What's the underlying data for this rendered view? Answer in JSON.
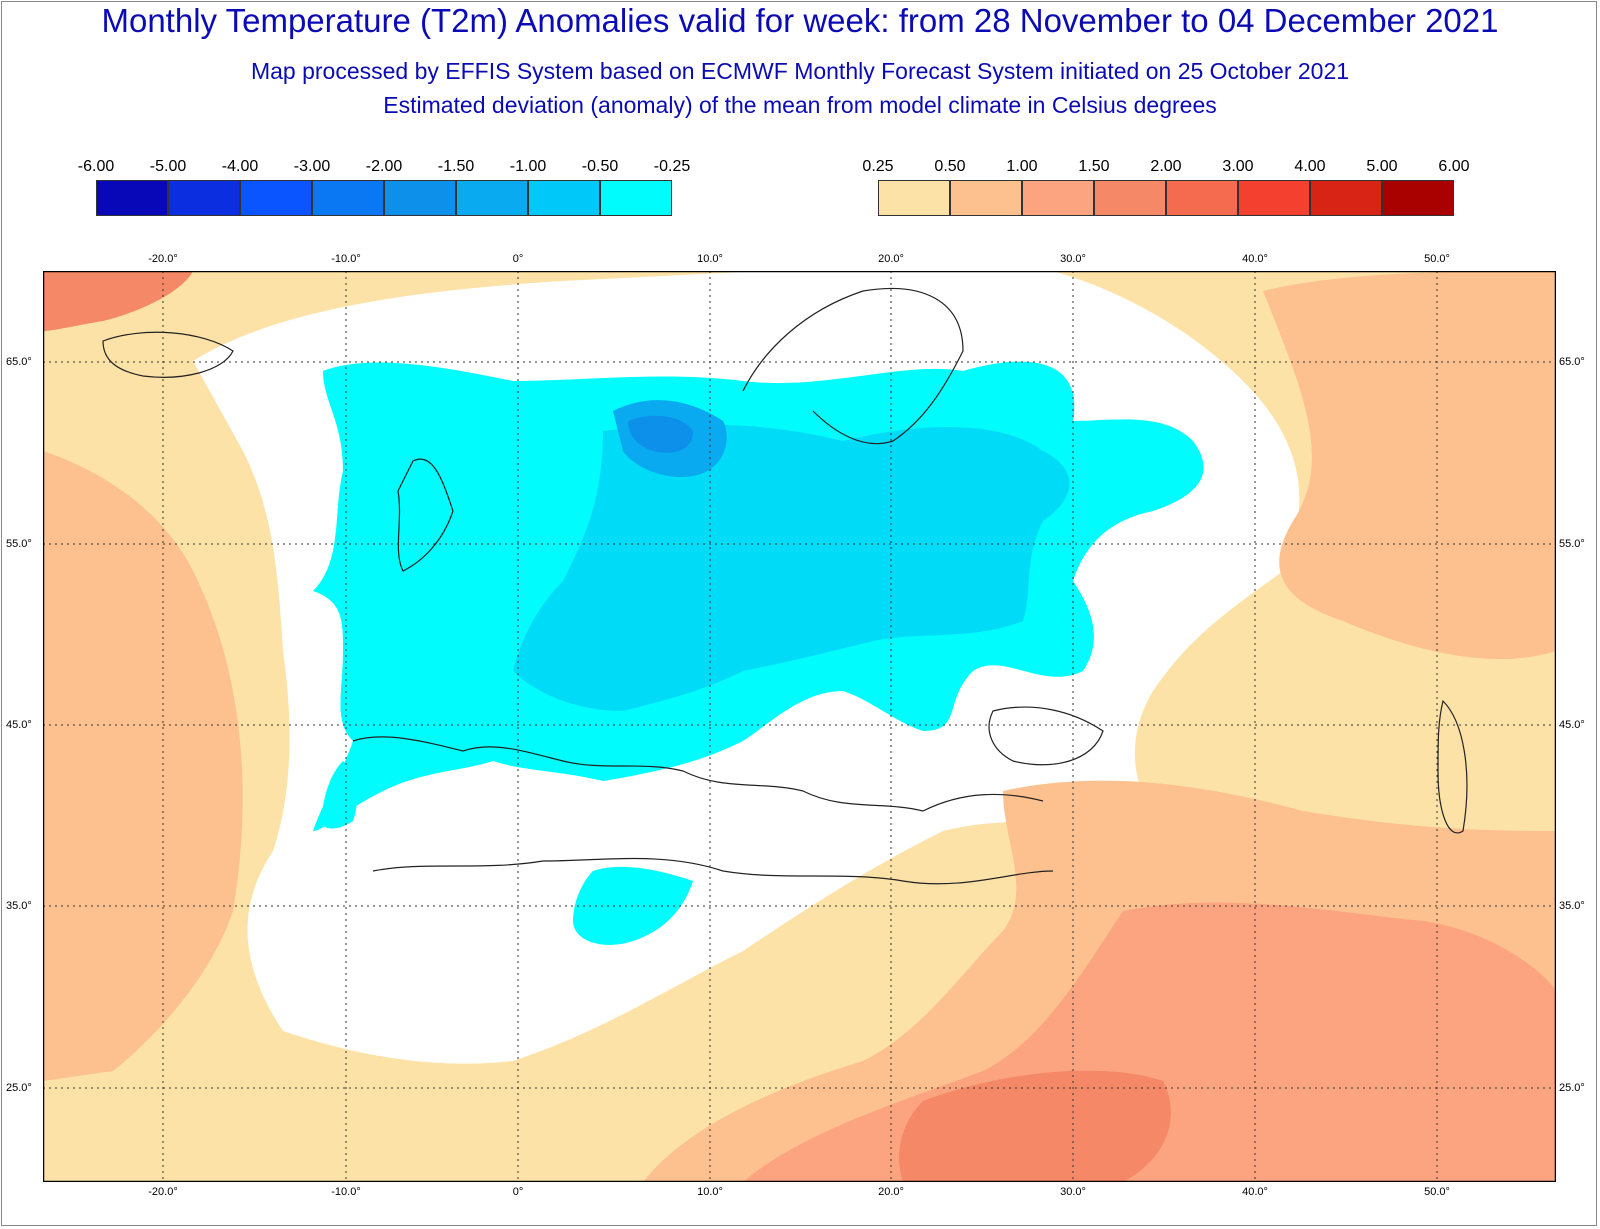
{
  "header": {
    "title": "Monthly Temperature (T2m) Anomalies valid for week: from 28 November to 04 December 2021",
    "subtitle_1": "Map processed by EFFIS System based on ECMWF Monthly Forecast System initiated on 25 October 2021",
    "subtitle_2": "Estimated deviation (anomaly) of the mean from model climate in Celsius degrees"
  },
  "legend": {
    "negative": {
      "ticks": [
        "-6.00",
        "-5.00",
        "-4.00",
        "-3.00",
        "-2.00",
        "-1.50",
        "-1.00",
        "-0.50",
        "-0.25"
      ],
      "colors": [
        "#0808b8",
        "#0a2ee0",
        "#0a55ff",
        "#0a78f2",
        "#0d90ea",
        "#0aaaf0",
        "#00c8f8",
        "#00fcfc"
      ]
    },
    "positive": {
      "ticks": [
        "0.25",
        "0.50",
        "1.00",
        "1.50",
        "2.00",
        "3.00",
        "4.00",
        "5.00",
        "6.00"
      ],
      "colors": [
        "#fde2a8",
        "#fdc08f",
        "#fba47f",
        "#f58866",
        "#f46b50",
        "#f4402e",
        "#d82415",
        "#a90000"
      ]
    }
  },
  "axes": {
    "longitude_labels": [
      "-20.0°",
      "-10.0°",
      "0°",
      "10.0°",
      "20.0°",
      "30.0°",
      "40.0°",
      "50.0°"
    ],
    "latitude_labels": [
      "65.0°",
      "55.0°",
      "45.0°",
      "35.0°",
      "25.0°"
    ]
  },
  "colors": {
    "ocean_warm": "#fde2a8",
    "warm_2": "#fdc08f",
    "warm_3": "#fba47f",
    "warm_4": "#f58866",
    "cool_1": "#00fcfc",
    "cool_2": "#00dcf8",
    "cool_3": "#0aaaf0",
    "cool_4": "#0d90ea",
    "border": "#222222",
    "grid": "#333333"
  }
}
